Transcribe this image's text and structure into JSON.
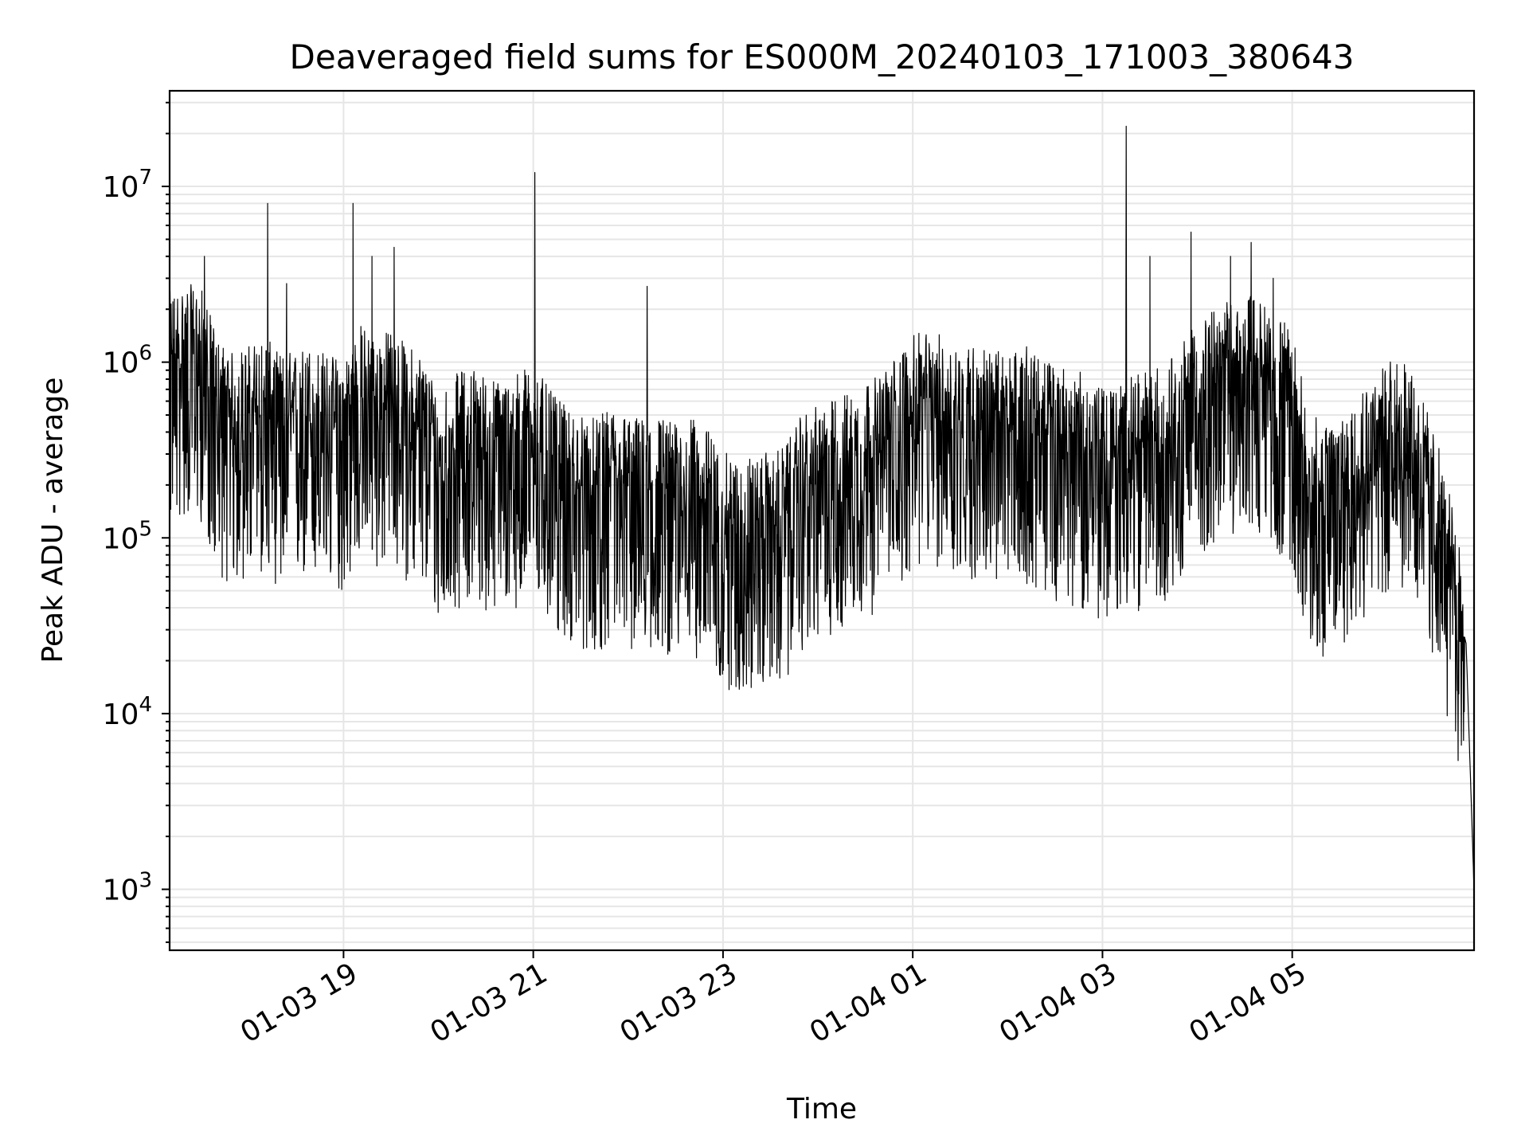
{
  "chart_data": {
    "type": "line",
    "title": "Deaveraged field sums for ES000M_20240103_171003_380643",
    "xlabel": "Time",
    "ylabel": "Peak ADU - average",
    "y_scale": "log",
    "x_ticks": [
      "01-03 19",
      "01-03 21",
      "01-03 23",
      "01-04 01",
      "01-04 03",
      "01-04 05"
    ],
    "y_ticks": [
      {
        "base": "10",
        "exp": "3"
      },
      {
        "base": "10",
        "exp": "4"
      },
      {
        "base": "10",
        "exp": "5"
      },
      {
        "base": "10",
        "exp": "6"
      },
      {
        "base": "10",
        "exp": "7"
      }
    ],
    "xlim": [
      "2024-01-03 17:10",
      "2024-01-04 06:55"
    ],
    "ylim": [
      450,
      35000000
    ],
    "grid": true,
    "line_color": "#000000",
    "series": [
      {
        "x": [
          "2024-01-03 17:10",
          "2024-01-03 17:20",
          "2024-01-03 17:30",
          "2024-01-03 17:40",
          "2024-01-03 17:50",
          "2024-01-03 18:00",
          "2024-01-03 18:10",
          "2024-01-03 18:20",
          "2024-01-03 18:30",
          "2024-01-03 18:40",
          "2024-01-03 18:50",
          "2024-01-03 19:00",
          "2024-01-03 19:10",
          "2024-01-03 19:20",
          "2024-01-03 19:30",
          "2024-01-03 19:40",
          "2024-01-03 19:50",
          "2024-01-03 20:00",
          "2024-01-03 20:10",
          "2024-01-03 20:20",
          "2024-01-03 20:30",
          "2024-01-03 20:40",
          "2024-01-03 20:50",
          "2024-01-03 21:00",
          "2024-01-03 21:10",
          "2024-01-03 21:20",
          "2024-01-03 21:30",
          "2024-01-03 21:40",
          "2024-01-03 21:50",
          "2024-01-03 22:00",
          "2024-01-03 22:10",
          "2024-01-03 22:20",
          "2024-01-03 22:30",
          "2024-01-03 22:40",
          "2024-01-03 22:50",
          "2024-01-03 23:00",
          "2024-01-03 23:10",
          "2024-01-03 23:20",
          "2024-01-03 23:30",
          "2024-01-03 23:40",
          "2024-01-03 23:50",
          "2024-01-04 00:00",
          "2024-01-04 00:10",
          "2024-01-04 00:20",
          "2024-01-04 00:30",
          "2024-01-04 00:40",
          "2024-01-04 00:50",
          "2024-01-04 01:00",
          "2024-01-04 01:10",
          "2024-01-04 01:20",
          "2024-01-04 01:30",
          "2024-01-04 01:40",
          "2024-01-04 01:50",
          "2024-01-04 02:00",
          "2024-01-04 02:10",
          "2024-01-04 02:20",
          "2024-01-04 02:30",
          "2024-01-04 02:40",
          "2024-01-04 02:50",
          "2024-01-04 03:00",
          "2024-01-04 03:10",
          "2024-01-04 03:20",
          "2024-01-04 03:30",
          "2024-01-04 03:40",
          "2024-01-04 03:50",
          "2024-01-04 04:00",
          "2024-01-04 04:10",
          "2024-01-04 04:20",
          "2024-01-04 04:30",
          "2024-01-04 04:40",
          "2024-01-04 04:50",
          "2024-01-04 05:00",
          "2024-01-04 05:10",
          "2024-01-04 05:20",
          "2024-01-04 05:30",
          "2024-01-04 05:40",
          "2024-01-04 05:50",
          "2024-01-04 06:00",
          "2024-01-04 06:10",
          "2024-01-04 06:20",
          "2024-01-04 06:30",
          "2024-01-04 06:40",
          "2024-01-04 06:50",
          "2024-01-04 06:55"
        ],
        "y": [
          900000,
          1000000,
          950000,
          500000,
          400000,
          450000,
          500000,
          400000,
          420000,
          450000,
          400000,
          380000,
          600000,
          500000,
          550000,
          450000,
          400000,
          250000,
          300000,
          350000,
          300000,
          280000,
          320000,
          350000,
          250000,
          200000,
          180000,
          170000,
          200000,
          180000,
          170000,
          180000,
          160000,
          170000,
          150000,
          110000,
          100000,
          105000,
          110000,
          120000,
          180000,
          200000,
          220000,
          250000,
          280000,
          300000,
          400000,
          500000,
          550000,
          500000,
          450000,
          450000,
          420000,
          400000,
          450000,
          380000,
          350000,
          330000,
          300000,
          250000,
          270000,
          300000,
          320000,
          350000,
          450000,
          600000,
          700000,
          800000,
          900000,
          800000,
          650000,
          550000,
          200000,
          150000,
          180000,
          250000,
          300000,
          350000,
          400000,
          250000,
          150000,
          60000,
          25000,
          1000
        ],
        "spike_x": [
          "2024-01-03 17:32",
          "2024-01-03 18:12",
          "2024-01-03 18:24",
          "2024-01-03 19:06",
          "2024-01-03 19:18",
          "2024-01-03 19:32",
          "2024-01-03 21:01",
          "2024-01-03 22:12",
          "2024-01-04 03:15",
          "2024-01-04 03:30",
          "2024-01-04 03:56",
          "2024-01-04 04:21",
          "2024-01-04 04:34",
          "2024-01-04 04:48"
        ],
        "spike_y": [
          4000000,
          8000000,
          2800000,
          8000000,
          4000000,
          4500000,
          12000000,
          2700000,
          22000000,
          4000000,
          5500000,
          4000000,
          4800000,
          3000000
        ]
      }
    ]
  }
}
